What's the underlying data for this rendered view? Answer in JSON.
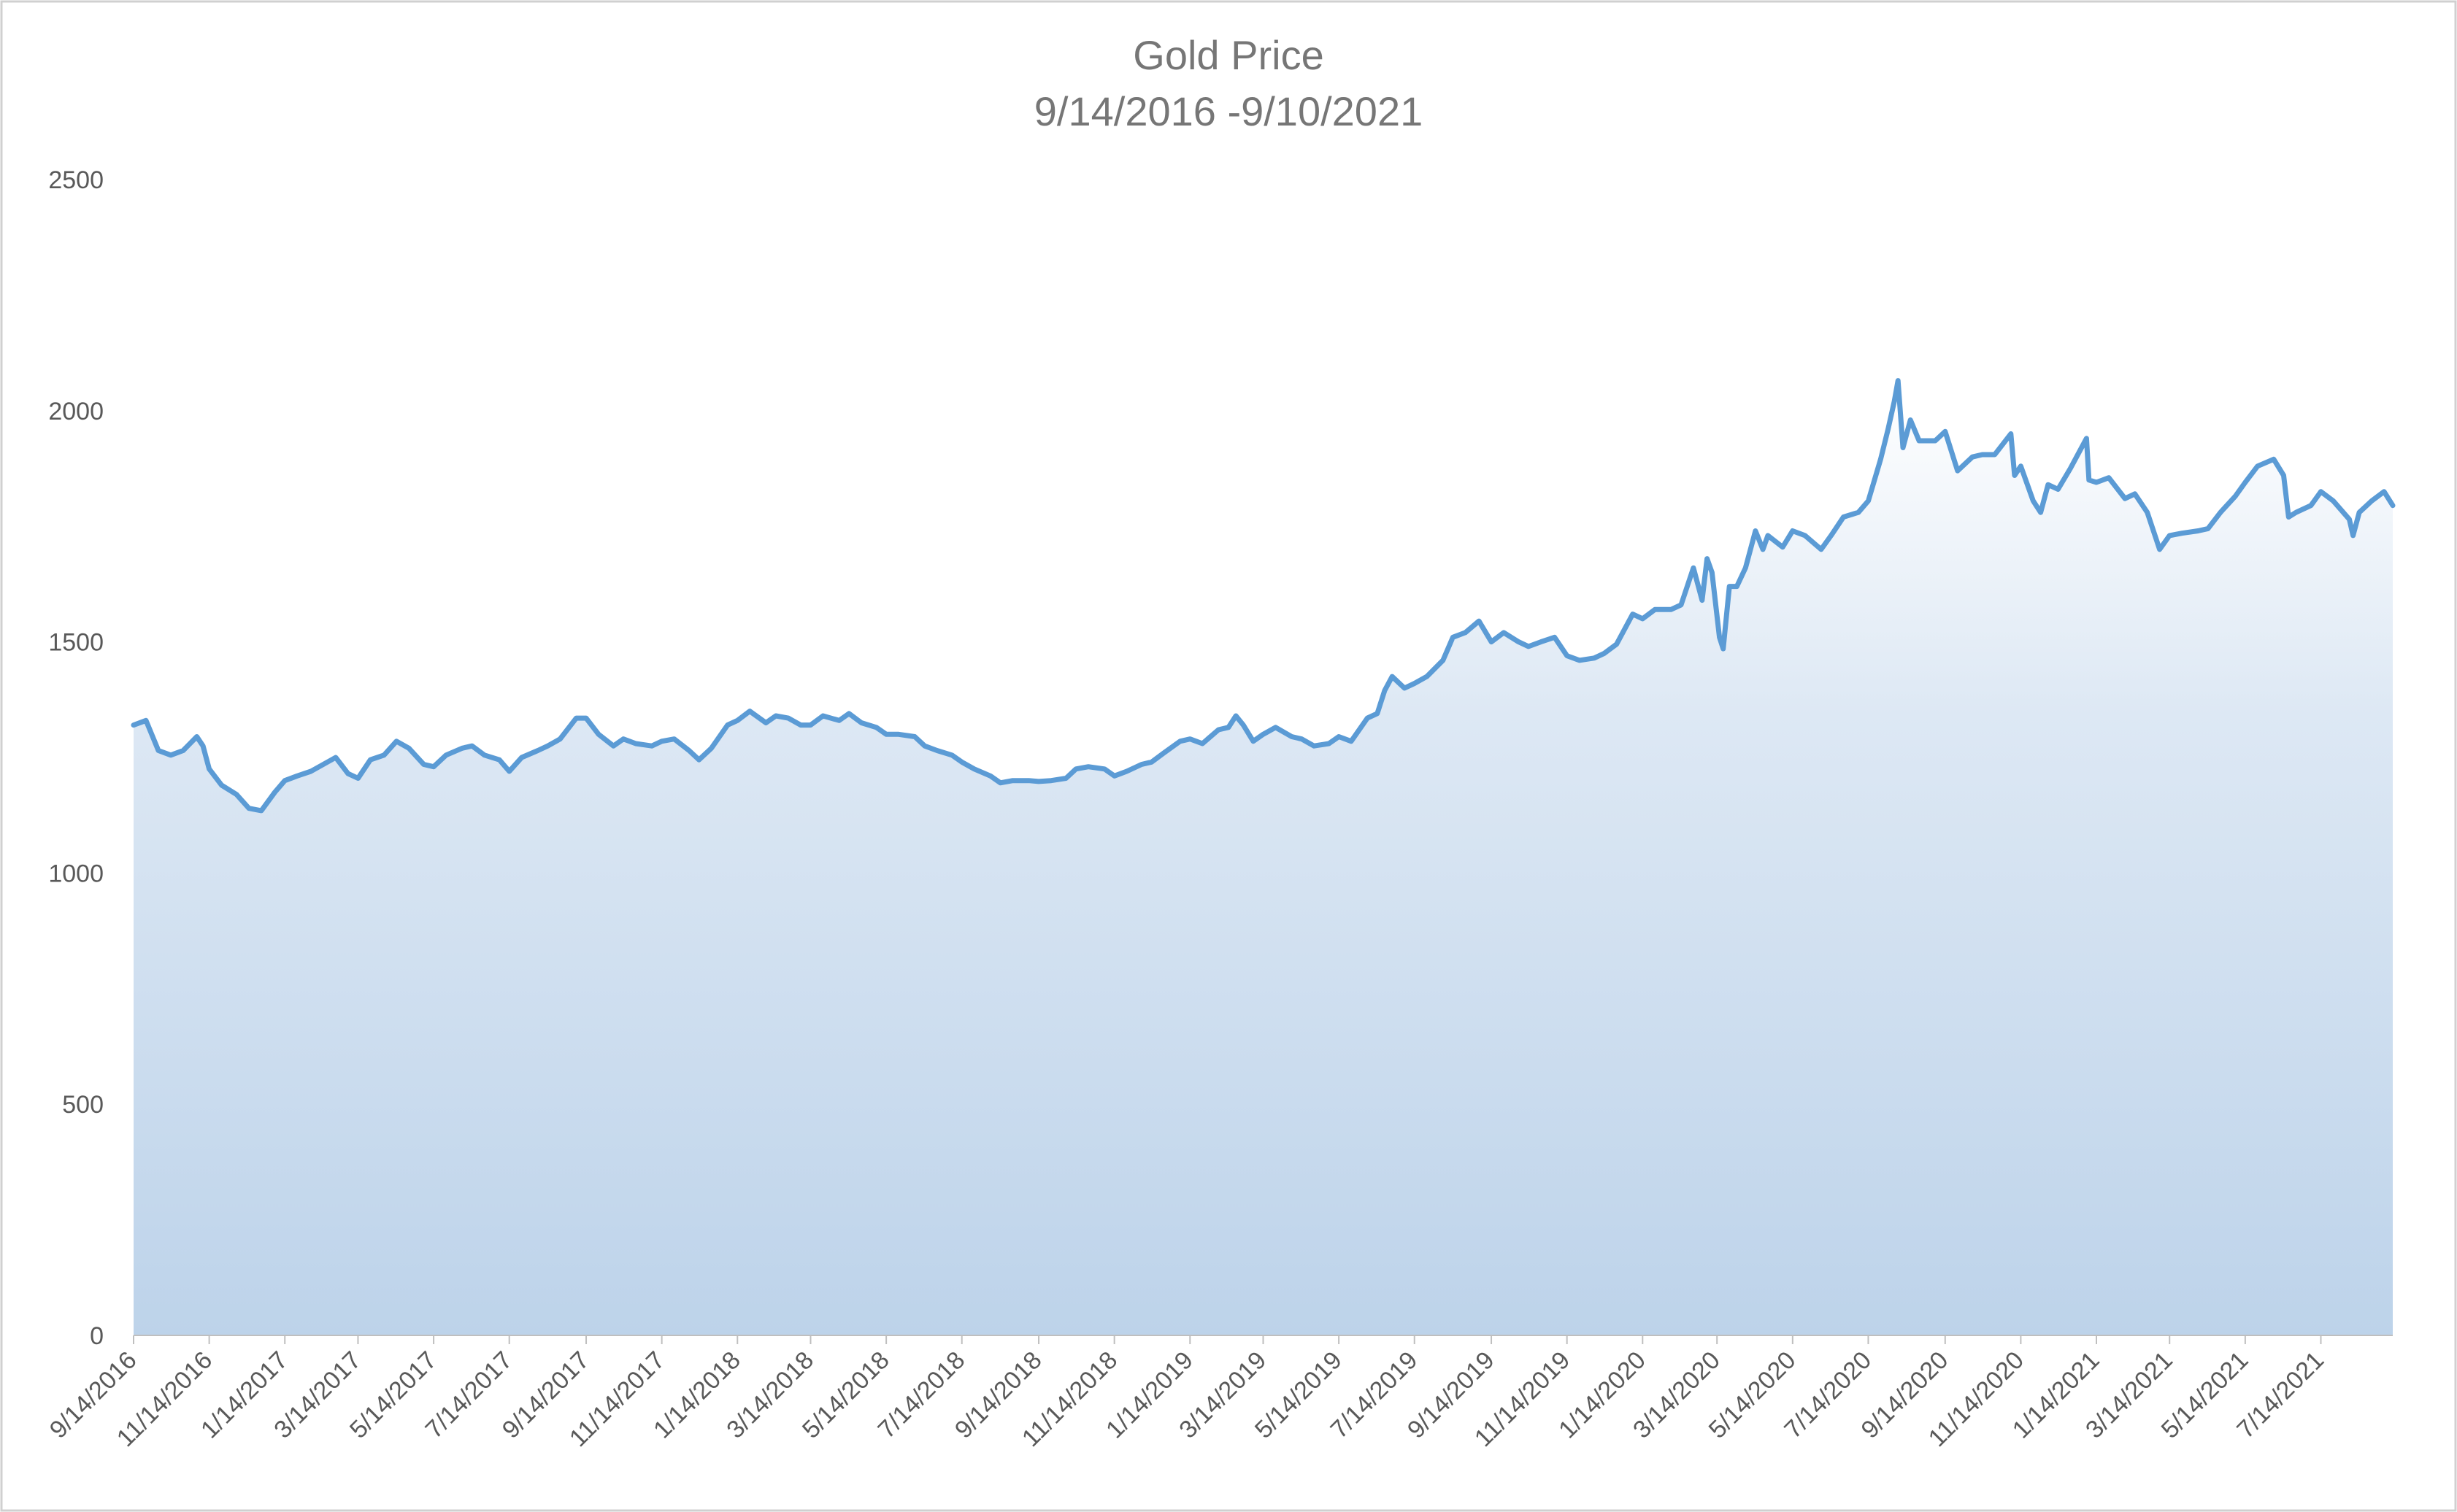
{
  "chart_data": {
    "type": "area",
    "title": "Gold Price",
    "subtitle": "9/14/2016 -9/10/2021",
    "xlabel": "",
    "ylabel": "",
    "ylim": [
      0,
      2500
    ],
    "y_ticks": [
      0,
      500,
      1000,
      1500,
      2000,
      2500
    ],
    "x_start": "9/14/2016",
    "x_end": "9/10/2021",
    "x_ticks": [
      "9/14/2016",
      "11/14/2016",
      "1/14/2017",
      "3/14/2017",
      "5/14/2017",
      "7/14/2017",
      "9/14/2017",
      "11/14/2017",
      "1/14/2018",
      "3/14/2018",
      "5/14/2018",
      "7/14/2018",
      "9/14/2018",
      "11/14/2018",
      "1/14/2019",
      "3/14/2019",
      "5/14/2019",
      "7/14/2019",
      "9/14/2019",
      "11/14/2019",
      "1/14/2020",
      "3/14/2020",
      "5/14/2020",
      "7/14/2020",
      "9/14/2020",
      "11/14/2020",
      "1/14/2021",
      "3/14/2021",
      "5/14/2021",
      "7/14/2021"
    ],
    "grid": false,
    "legend": "none",
    "colors": {
      "line": "#5b9bd5",
      "fill_top": "#ffffff",
      "fill_bottom": "#bdd3ea"
    },
    "series": [
      {
        "points": [
          [
            "2016-09-14",
            1320
          ],
          [
            "2016-09-24",
            1330
          ],
          [
            "2016-10-04",
            1265
          ],
          [
            "2016-10-14",
            1255
          ],
          [
            "2016-10-24",
            1265
          ],
          [
            "2016-11-04",
            1295
          ],
          [
            "2016-11-09",
            1275
          ],
          [
            "2016-11-14",
            1225
          ],
          [
            "2016-11-24",
            1190
          ],
          [
            "2016-12-06",
            1170
          ],
          [
            "2016-12-16",
            1140
          ],
          [
            "2016-12-26",
            1135
          ],
          [
            "2017-01-06",
            1175
          ],
          [
            "2017-01-14",
            1200
          ],
          [
            "2017-01-24",
            1210
          ],
          [
            "2017-02-04",
            1220
          ],
          [
            "2017-02-14",
            1235
          ],
          [
            "2017-02-24",
            1250
          ],
          [
            "2017-03-06",
            1215
          ],
          [
            "2017-03-14",
            1205
          ],
          [
            "2017-03-24",
            1245
          ],
          [
            "2017-04-04",
            1255
          ],
          [
            "2017-04-14",
            1285
          ],
          [
            "2017-04-24",
            1270
          ],
          [
            "2017-05-06",
            1235
          ],
          [
            "2017-05-14",
            1230
          ],
          [
            "2017-05-24",
            1255
          ],
          [
            "2017-06-06",
            1270
          ],
          [
            "2017-06-14",
            1275
          ],
          [
            "2017-06-24",
            1255
          ],
          [
            "2017-07-06",
            1245
          ],
          [
            "2017-07-14",
            1220
          ],
          [
            "2017-07-24",
            1250
          ],
          [
            "2017-08-06",
            1265
          ],
          [
            "2017-08-14",
            1275
          ],
          [
            "2017-08-24",
            1290
          ],
          [
            "2017-09-06",
            1335
          ],
          [
            "2017-09-14",
            1335
          ],
          [
            "2017-09-24",
            1300
          ],
          [
            "2017-10-06",
            1275
          ],
          [
            "2017-10-14",
            1290
          ],
          [
            "2017-10-24",
            1280
          ],
          [
            "2017-11-06",
            1275
          ],
          [
            "2017-11-14",
            1285
          ],
          [
            "2017-11-24",
            1290
          ],
          [
            "2017-12-06",
            1265
          ],
          [
            "2017-12-14",
            1245
          ],
          [
            "2017-12-24",
            1270
          ],
          [
            "2018-01-06",
            1320
          ],
          [
            "2018-01-14",
            1330
          ],
          [
            "2018-01-24",
            1350
          ],
          [
            "2018-02-06",
            1325
          ],
          [
            "2018-02-14",
            1340
          ],
          [
            "2018-02-24",
            1335
          ],
          [
            "2018-03-06",
            1320
          ],
          [
            "2018-03-14",
            1320
          ],
          [
            "2018-03-24",
            1340
          ],
          [
            "2018-04-06",
            1330
          ],
          [
            "2018-04-14",
            1345
          ],
          [
            "2018-04-24",
            1325
          ],
          [
            "2018-05-06",
            1315
          ],
          [
            "2018-05-14",
            1300
          ],
          [
            "2018-05-24",
            1300
          ],
          [
            "2018-06-06",
            1295
          ],
          [
            "2018-06-14",
            1275
          ],
          [
            "2018-06-24",
            1265
          ],
          [
            "2018-07-06",
            1255
          ],
          [
            "2018-07-14",
            1240
          ],
          [
            "2018-07-24",
            1225
          ],
          [
            "2018-08-06",
            1210
          ],
          [
            "2018-08-14",
            1195
          ],
          [
            "2018-08-24",
            1200
          ],
          [
            "2018-09-06",
            1200
          ],
          [
            "2018-09-14",
            1198
          ],
          [
            "2018-09-24",
            1200
          ],
          [
            "2018-10-06",
            1205
          ],
          [
            "2018-10-14",
            1225
          ],
          [
            "2018-10-24",
            1230
          ],
          [
            "2018-11-06",
            1225
          ],
          [
            "2018-11-14",
            1210
          ],
          [
            "2018-11-24",
            1220
          ],
          [
            "2018-12-06",
            1235
          ],
          [
            "2018-12-14",
            1240
          ],
          [
            "2018-12-24",
            1260
          ],
          [
            "2019-01-06",
            1285
          ],
          [
            "2019-01-14",
            1290
          ],
          [
            "2019-01-24",
            1280
          ],
          [
            "2019-02-06",
            1310
          ],
          [
            "2019-02-14",
            1315
          ],
          [
            "2019-02-20",
            1340
          ],
          [
            "2019-02-26",
            1320
          ],
          [
            "2019-03-06",
            1285
          ],
          [
            "2019-03-14",
            1300
          ],
          [
            "2019-03-24",
            1315
          ],
          [
            "2019-04-06",
            1295
          ],
          [
            "2019-04-14",
            1290
          ],
          [
            "2019-04-24",
            1275
          ],
          [
            "2019-05-06",
            1280
          ],
          [
            "2019-05-14",
            1295
          ],
          [
            "2019-05-24",
            1285
          ],
          [
            "2019-06-06",
            1335
          ],
          [
            "2019-06-14",
            1345
          ],
          [
            "2019-06-20",
            1395
          ],
          [
            "2019-06-26",
            1425
          ],
          [
            "2019-07-06",
            1400
          ],
          [
            "2019-07-14",
            1410
          ],
          [
            "2019-07-24",
            1425
          ],
          [
            "2019-08-06",
            1460
          ],
          [
            "2019-08-14",
            1510
          ],
          [
            "2019-08-24",
            1520
          ],
          [
            "2019-09-04",
            1545
          ],
          [
            "2019-09-14",
            1500
          ],
          [
            "2019-09-24",
            1520
          ],
          [
            "2019-10-06",
            1500
          ],
          [
            "2019-10-14",
            1490
          ],
          [
            "2019-10-24",
            1500
          ],
          [
            "2019-11-04",
            1510
          ],
          [
            "2019-11-14",
            1470
          ],
          [
            "2019-11-24",
            1460
          ],
          [
            "2019-12-06",
            1465
          ],
          [
            "2019-12-14",
            1475
          ],
          [
            "2019-12-24",
            1495
          ],
          [
            "2020-01-06",
            1560
          ],
          [
            "2020-01-14",
            1550
          ],
          [
            "2020-01-24",
            1570
          ],
          [
            "2020-02-06",
            1570
          ],
          [
            "2020-02-14",
            1580
          ],
          [
            "2020-02-24",
            1660
          ],
          [
            "2020-03-02",
            1590
          ],
          [
            "2020-03-06",
            1680
          ],
          [
            "2020-03-10",
            1650
          ],
          [
            "2020-03-16",
            1510
          ],
          [
            "2020-03-19",
            1485
          ],
          [
            "2020-03-24",
            1620
          ],
          [
            "2020-03-30",
            1620
          ],
          [
            "2020-04-06",
            1660
          ],
          [
            "2020-04-14",
            1740
          ],
          [
            "2020-04-20",
            1700
          ],
          [
            "2020-04-24",
            1730
          ],
          [
            "2020-05-06",
            1705
          ],
          [
            "2020-05-14",
            1740
          ],
          [
            "2020-05-24",
            1730
          ],
          [
            "2020-06-06",
            1700
          ],
          [
            "2020-06-14",
            1730
          ],
          [
            "2020-06-24",
            1770
          ],
          [
            "2020-07-06",
            1780
          ],
          [
            "2020-07-14",
            1805
          ],
          [
            "2020-07-24",
            1895
          ],
          [
            "2020-07-30",
            1960
          ],
          [
            "2020-08-04",
            2020
          ],
          [
            "2020-08-07",
            2065
          ],
          [
            "2020-08-11",
            1920
          ],
          [
            "2020-08-17",
            1980
          ],
          [
            "2020-08-24",
            1935
          ],
          [
            "2020-09-06",
            1935
          ],
          [
            "2020-09-14",
            1955
          ],
          [
            "2020-09-24",
            1870
          ],
          [
            "2020-10-06",
            1900
          ],
          [
            "2020-10-14",
            1905
          ],
          [
            "2020-10-24",
            1905
          ],
          [
            "2020-11-06",
            1950
          ],
          [
            "2020-11-09",
            1860
          ],
          [
            "2020-11-14",
            1880
          ],
          [
            "2020-11-24",
            1805
          ],
          [
            "2020-11-30",
            1780
          ],
          [
            "2020-12-06",
            1840
          ],
          [
            "2020-12-14",
            1830
          ],
          [
            "2020-12-24",
            1875
          ],
          [
            "2021-01-06",
            1940
          ],
          [
            "2021-01-08",
            1850
          ],
          [
            "2021-01-14",
            1845
          ],
          [
            "2021-01-24",
            1855
          ],
          [
            "2021-02-06",
            1810
          ],
          [
            "2021-02-14",
            1820
          ],
          [
            "2021-02-24",
            1780
          ],
          [
            "2021-03-06",
            1700
          ],
          [
            "2021-03-14",
            1730
          ],
          [
            "2021-03-24",
            1735
          ],
          [
            "2021-04-06",
            1740
          ],
          [
            "2021-04-14",
            1745
          ],
          [
            "2021-04-24",
            1780
          ],
          [
            "2021-05-06",
            1815
          ],
          [
            "2021-05-14",
            1845
          ],
          [
            "2021-05-24",
            1880
          ],
          [
            "2021-06-06",
            1895
          ],
          [
            "2021-06-14",
            1860
          ],
          [
            "2021-06-18",
            1770
          ],
          [
            "2021-06-24",
            1780
          ],
          [
            "2021-07-06",
            1795
          ],
          [
            "2021-07-14",
            1825
          ],
          [
            "2021-07-24",
            1805
          ],
          [
            "2021-08-06",
            1765
          ],
          [
            "2021-08-09",
            1730
          ],
          [
            "2021-08-14",
            1780
          ],
          [
            "2021-08-24",
            1805
          ],
          [
            "2021-09-03",
            1825
          ],
          [
            "2021-09-10",
            1795
          ]
        ]
      }
    ]
  }
}
